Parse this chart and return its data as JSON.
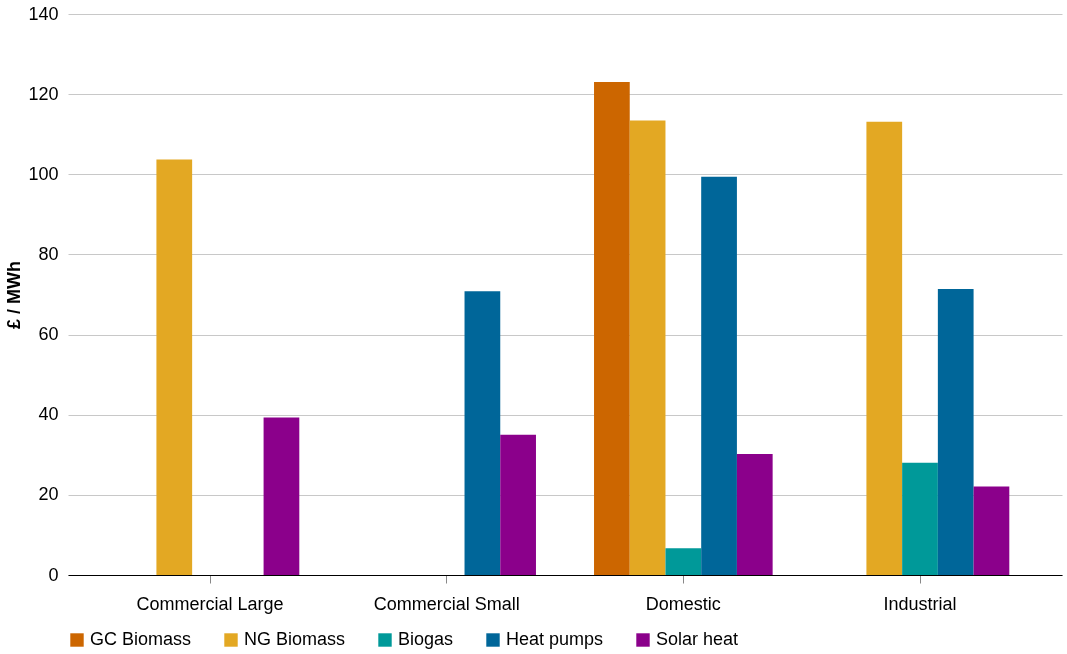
{
  "chart_data": {
    "type": "bar",
    "ylabel": "£ / MWh",
    "categories": [
      "Commercial Large",
      "Commercial Small",
      "Domestic",
      "Industrial"
    ],
    "series": [
      {
        "name": "GC Biomass",
        "color": "#cc6600",
        "values": [
          null,
          null,
          123.0,
          null
        ]
      },
      {
        "name": "NG Biomass",
        "color": "#e3a823",
        "values": [
          103.7,
          null,
          113.4,
          113.1
        ]
      },
      {
        "name": "Biogas",
        "color": "#009999",
        "values": [
          null,
          null,
          6.7,
          28.0
        ]
      },
      {
        "name": "Heat pumps",
        "color": "#006699",
        "values": [
          null,
          70.8,
          99.4,
          71.4
        ]
      },
      {
        "name": "Solar heat",
        "color": "#8b008b",
        "values": [
          39.3,
          35.0,
          30.2,
          22.1
        ]
      }
    ],
    "ylim": [
      0,
      140
    ],
    "yticks": [
      0,
      20,
      40,
      60,
      80,
      100,
      120,
      140
    ],
    "grid": "y",
    "legend": "bottom"
  }
}
